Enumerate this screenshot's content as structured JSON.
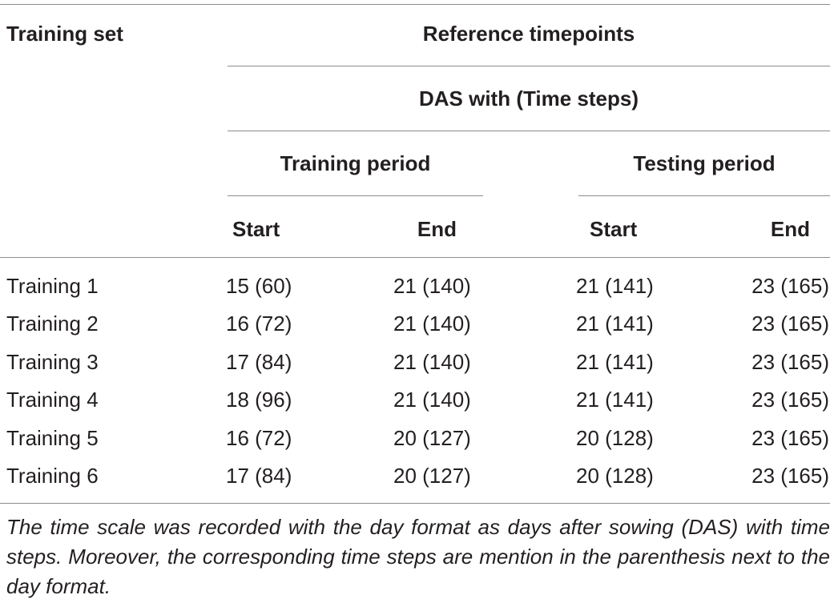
{
  "header": {
    "training_set": "Training set",
    "reference_timepoints": "Reference timepoints",
    "das_with": "DAS with (Time steps)",
    "training_period": "Training period",
    "testing_period": "Testing period",
    "start_1": "Start",
    "end_1": "End",
    "start_2": "Start",
    "end_2": "End"
  },
  "rows": [
    {
      "name": "Training 1",
      "train_start": "15 (60)",
      "train_end": "21 (140)",
      "test_start": "21 (141)",
      "test_end": "23 (165)"
    },
    {
      "name": "Training 2",
      "train_start": "16 (72)",
      "train_end": "21 (140)",
      "test_start": "21 (141)",
      "test_end": "23 (165)"
    },
    {
      "name": "Training 3",
      "train_start": "17 (84)",
      "train_end": "21 (140)",
      "test_start": "21 (141)",
      "test_end": "23 (165)"
    },
    {
      "name": "Training 4",
      "train_start": "18 (96)",
      "train_end": "21 (140)",
      "test_start": "21 (141)",
      "test_end": "23 (165)"
    },
    {
      "name": "Training 5",
      "train_start": "16 (72)",
      "train_end": "20 (127)",
      "test_start": "20 (128)",
      "test_end": "23 (165)"
    },
    {
      "name": "Training 6",
      "train_start": "17 (84)",
      "train_end": "20 (127)",
      "test_start": "20 (128)",
      "test_end": "23 (165)"
    }
  ],
  "footnote": "The time scale was recorded with the day format as days after sowing (DAS) with time steps. Moreover, the corresponding time steps are mention in the parenthesis next to the day format."
}
